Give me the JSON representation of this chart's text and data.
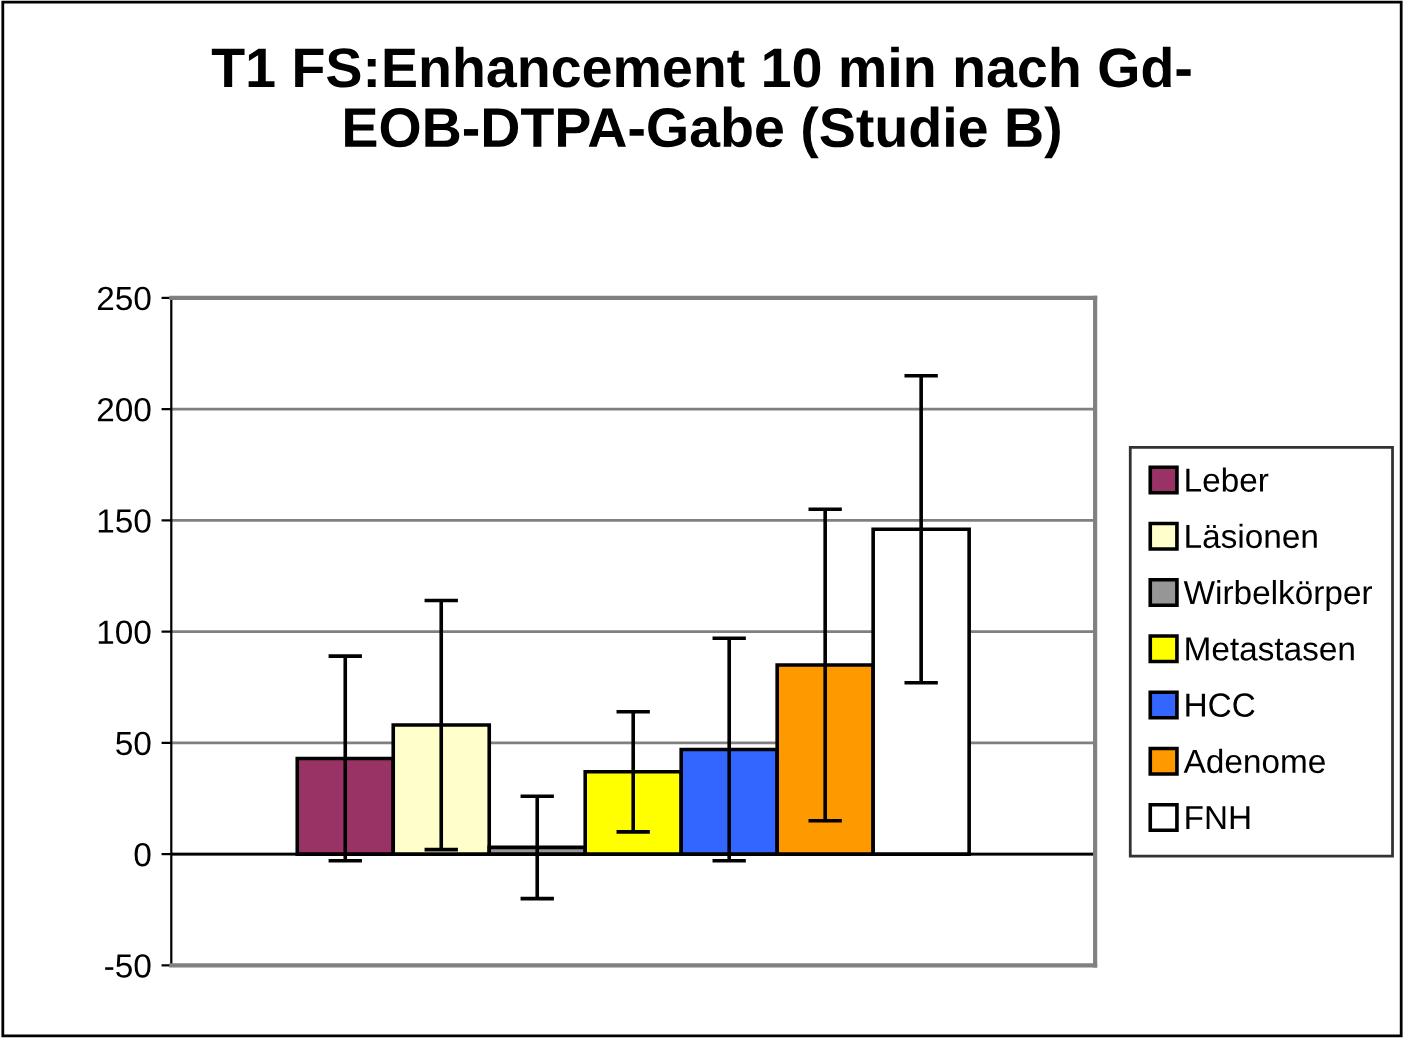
{
  "chart_data": {
    "type": "bar",
    "title": "T1 FS:Enhancement 10 min nach Gd-\nEOB-DTPA-Gabe (Studie B)",
    "categories": [
      null
    ],
    "series": [
      {
        "name": "Leber",
        "color": "#993366",
        "values": [
          43
        ],
        "errors": [
          46
        ]
      },
      {
        "name": "Läsionen",
        "color": "#ffffcc",
        "values": [
          58
        ],
        "errors": [
          56
        ]
      },
      {
        "name": "Wirbelkörper",
        "color": "#969696",
        "values": [
          3
        ],
        "errors": [
          23
        ]
      },
      {
        "name": "Metastasen",
        "color": "#ffff00",
        "values": [
          37
        ],
        "errors": [
          27
        ]
      },
      {
        "name": "HCC",
        "color": "#3366ff",
        "values": [
          47
        ],
        "errors": [
          50
        ]
      },
      {
        "name": "Adenome",
        "color": "#ff9900",
        "values": [
          85
        ],
        "errors": [
          70
        ]
      },
      {
        "name": "FNH",
        "color": "#ffffff",
        "values": [
          146
        ],
        "errors": [
          69
        ]
      }
    ],
    "ylim": [
      -50,
      250
    ],
    "yticks": [
      -50,
      0,
      50,
      100,
      150,
      200,
      250
    ],
    "grid": "y",
    "legend": "right"
  }
}
